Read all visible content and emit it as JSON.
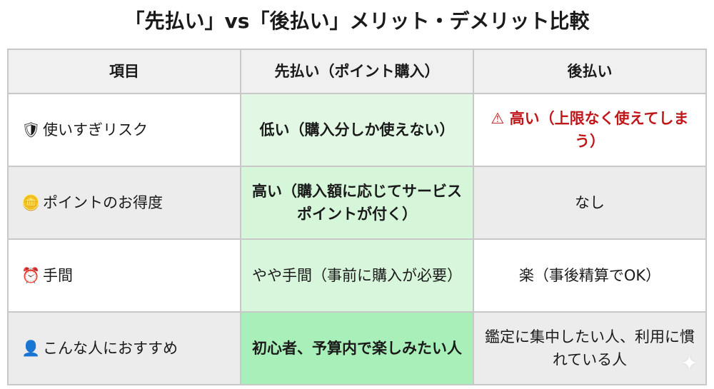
{
  "title": "「先払い」vs「後払い」メリット・デメリット比較",
  "headers": [
    "項目",
    "先払い（ポイント購入）",
    "後払い"
  ],
  "rows": [
    {
      "icon": "shield-icon",
      "glyph": "🛡",
      "item": "使いすぎリスク",
      "prepay": "低い（購入分しか使えない）",
      "postpay_icon": "warning-icon",
      "postpay_glyph": "⚠",
      "postpay": "高い（上限なく使えてしまう）"
    },
    {
      "icon": "coins-icon",
      "glyph": "🪙",
      "item": "ポイントのお得度",
      "prepay": "高い（購入額に応じてサービスポイントが付く）",
      "postpay": "なし"
    },
    {
      "icon": "alarm-clock-icon",
      "glyph": "⏰",
      "item": "手間",
      "prepay": "やや手間（事前に購入が必要）",
      "postpay": "楽（事後精算でOK）"
    },
    {
      "icon": "person-icon",
      "glyph": "👤",
      "item": "こんな人におすすめ",
      "prepay": "初心者、予算内で楽しみたい人",
      "postpay": "鑑定に集中したい人、利用に慣れている人"
    }
  ],
  "colors": {
    "warning": "#c0171b",
    "prepay_highlight": "#a9efb9"
  }
}
